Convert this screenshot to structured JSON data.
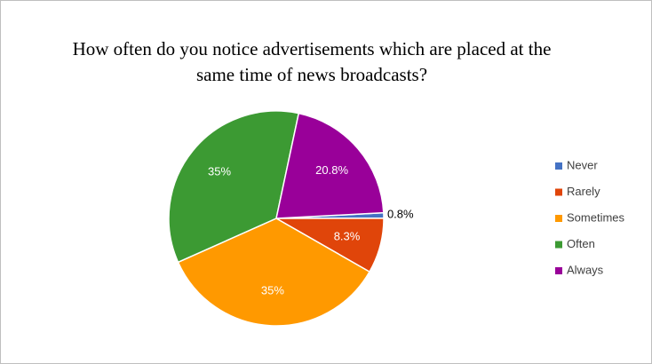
{
  "chart_data": {
    "type": "pie",
    "title": "How often do you notice advertisements which are placed at the same time of news broadcasts?",
    "categories": [
      "Never",
      "Rarely",
      "Sometimes",
      "Often",
      "Always"
    ],
    "values": [
      0.8,
      8.3,
      35,
      35,
      20.8
    ],
    "value_labels": [
      "0.8%",
      "8.3%",
      "35%",
      "35%",
      "20.8%"
    ],
    "colors": [
      "#4472c4",
      "#e0450a",
      "#ff9900",
      "#3c9a33",
      "#990099"
    ],
    "legend": "right"
  }
}
